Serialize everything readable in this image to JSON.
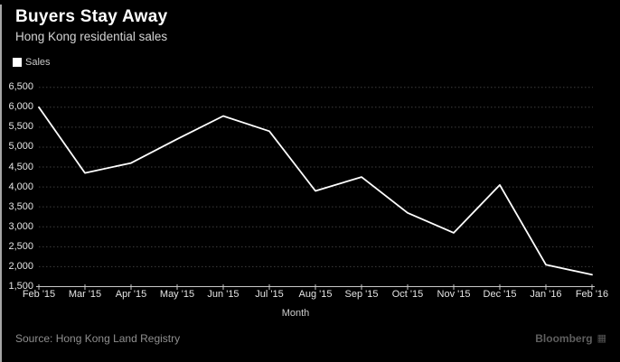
{
  "header": {
    "title": "Buyers Stay Away",
    "subtitle": "Hong Kong residential sales"
  },
  "legend": {
    "label": "Sales",
    "swatch_color": "#ffffff"
  },
  "footer": {
    "source": "Source: Hong Kong Land Registry",
    "brand": "Bloomberg",
    "brand_icon_glyph": "▦"
  },
  "colors": {
    "background": "#000000",
    "line": "#ffffff",
    "gridline": "#3e3e3e",
    "axis": "#c8c8c8",
    "tick_text": "#e4e4e4"
  },
  "chart_data": {
    "type": "line",
    "title": "Buyers Stay Away",
    "subtitle": "Hong Kong residential sales",
    "categories": [
      "Feb '15",
      "Mar '15",
      "Apr '15",
      "May '15",
      "Jun '15",
      "Jul '15",
      "Aug '15",
      "Sep '15",
      "Oct '15",
      "Nov '15",
      "Dec '15",
      "Jan '16",
      "Feb '16"
    ],
    "series": [
      {
        "name": "Sales",
        "color": "#ffffff",
        "values": [
          6000,
          4350,
          4600,
          5200,
          5780,
          5400,
          3900,
          4250,
          3350,
          2850,
          4050,
          2050,
          1800
        ]
      }
    ],
    "xlabel": "Month",
    "ylabel": "",
    "ylim": [
      1500,
      6500
    ],
    "ytick_step": 500,
    "ytick_labels": [
      "6,500",
      "6,000",
      "5,500",
      "5,000",
      "4,500",
      "4,000",
      "3,500",
      "3,000",
      "2,500",
      "2,000",
      "1,500"
    ],
    "grid": "horizontal-dotted",
    "legend_position": "top-left"
  }
}
